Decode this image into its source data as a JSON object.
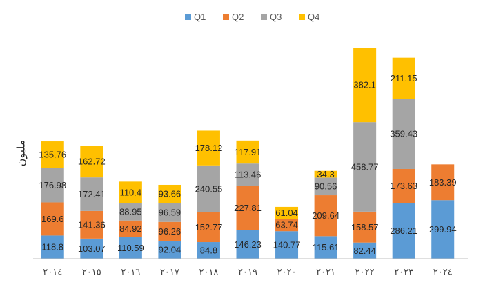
{
  "chart_data": {
    "type": "bar",
    "stacked": true,
    "categories": [
      "٢٠١٤",
      "٢٠١٥",
      "٢٠١٦",
      "٢٠١٧",
      "٢٠١٨",
      "٢٠١٩",
      "٢٠٢٠",
      "٢٠٢١",
      "٢٠٢٢",
      "٢٠٢٣",
      "٢٠٢٤"
    ],
    "series": [
      {
        "name": "Q1",
        "color": "#5B9BD5",
        "values": [
          118.8,
          103.07,
          110.59,
          92.04,
          84.8,
          146.23,
          140.77,
          115.61,
          82.44,
          286.21,
          299.94
        ],
        "labels": [
          "118.8",
          "103.07",
          "110.59",
          "92.04",
          "84.8",
          "146.23",
          "140.77",
          "115.61",
          "82.44",
          "286.21",
          "299.94"
        ]
      },
      {
        "name": "Q2",
        "color": "#ED7D31",
        "values": [
          169.6,
          141.36,
          84.92,
          96.26,
          152.77,
          227.81,
          63.74,
          209.64,
          158.57,
          173.63,
          183.39
        ],
        "labels": [
          "169.6",
          "141.36",
          "84.92",
          "96.26",
          "152.77",
          "227.81",
          "63.74",
          "209.64",
          "158.57",
          "173.63",
          "183.39"
        ]
      },
      {
        "name": "Q3",
        "color": "#A5A5A5",
        "values": [
          176.98,
          172.41,
          88.95,
          96.59,
          240.55,
          113.46,
          null,
          90.56,
          458.77,
          359.43,
          null
        ],
        "labels": [
          "176.98",
          "172.41",
          "88.95",
          "96.59",
          "240.55",
          "113.46",
          "",
          "90.56",
          "458.77",
          "359.43",
          ""
        ]
      },
      {
        "name": "Q4",
        "color": "#FFC000",
        "values": [
          135.76,
          162.72,
          110.4,
          93.66,
          178.12,
          117.91,
          61.04,
          34.3,
          382.1,
          211.15,
          null
        ],
        "labels": [
          "135.76",
          "162.72",
          "110.4",
          "93.66",
          "178.12",
          "117.91",
          "61.04",
          "34.3",
          "382.1",
          "211.15",
          ""
        ]
      }
    ],
    "ylabel": "مليون",
    "ylim": [
      0,
      1100
    ],
    "legend": "top-center",
    "grid": false
  }
}
